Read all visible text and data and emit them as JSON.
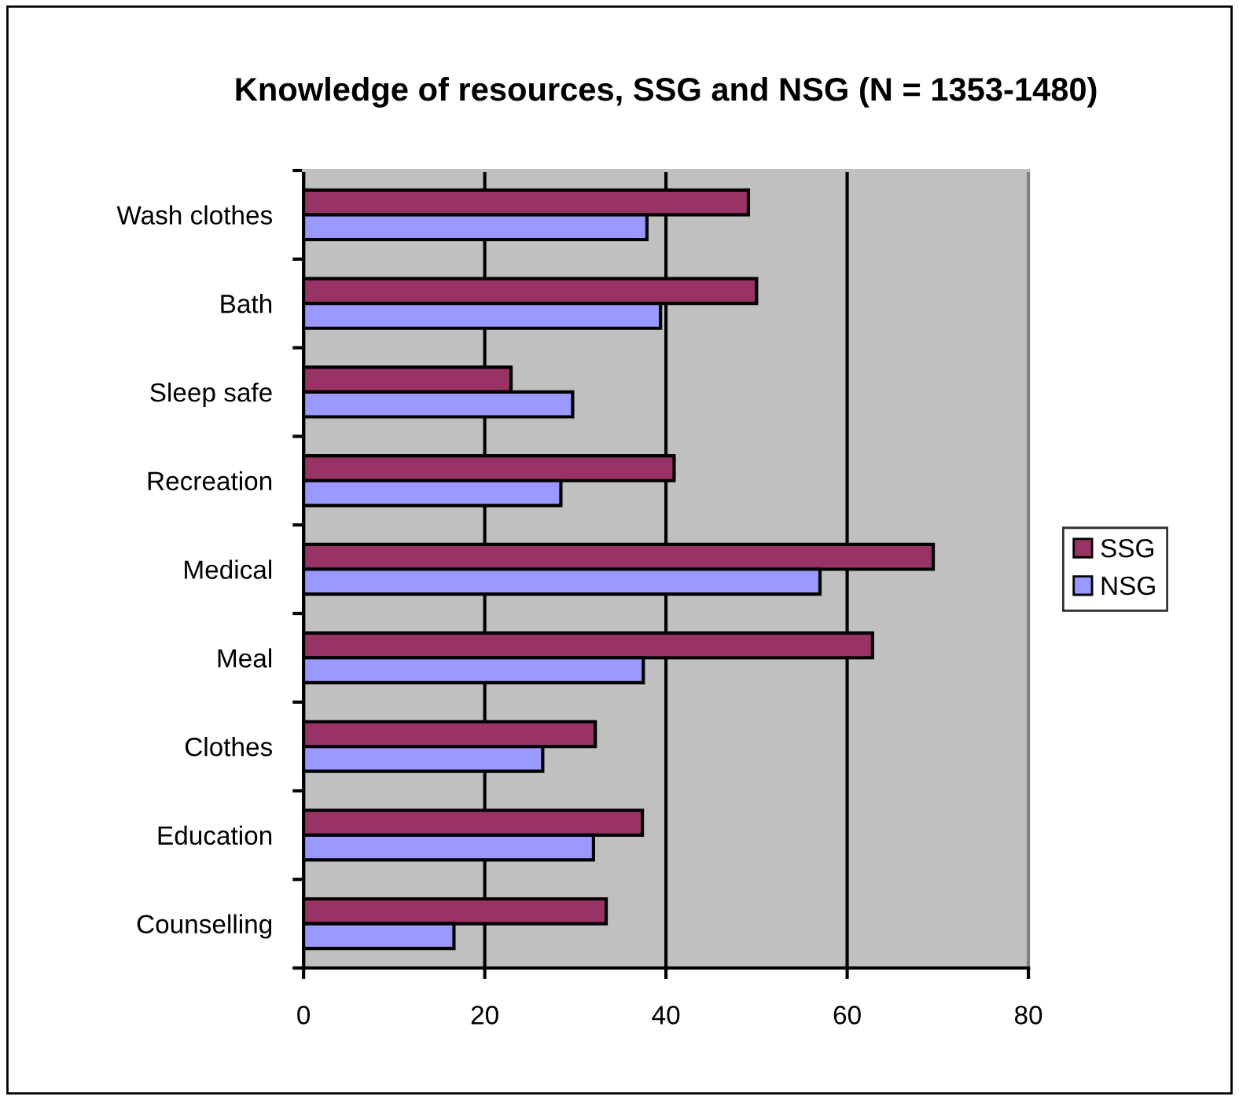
{
  "chart_data": {
    "type": "bar",
    "orientation": "horizontal",
    "title": "Knowledge of resources, SSG and NSG (N = 1353-1480)",
    "categories": [
      "Wash clothes",
      "Bath",
      "Sleep safe",
      "Recreation",
      "Medical",
      "Meal",
      "Clothes",
      "Education",
      "Counselling"
    ],
    "series": [
      {
        "name": "SSG",
        "color": "#993366",
        "values": [
          49.1,
          50.0,
          22.9,
          40.9,
          69.5,
          62.8,
          32.2,
          37.4,
          33.4
        ]
      },
      {
        "name": "NSG",
        "color": "#9999ff",
        "values": [
          37.9,
          39.4,
          29.7,
          28.4,
          57.0,
          37.5,
          26.4,
          32.0,
          16.6
        ]
      }
    ],
    "xlim": [
      0,
      80
    ],
    "xticks": [
      0,
      20,
      40,
      60,
      80
    ],
    "grid": "x",
    "legend": "right"
  }
}
